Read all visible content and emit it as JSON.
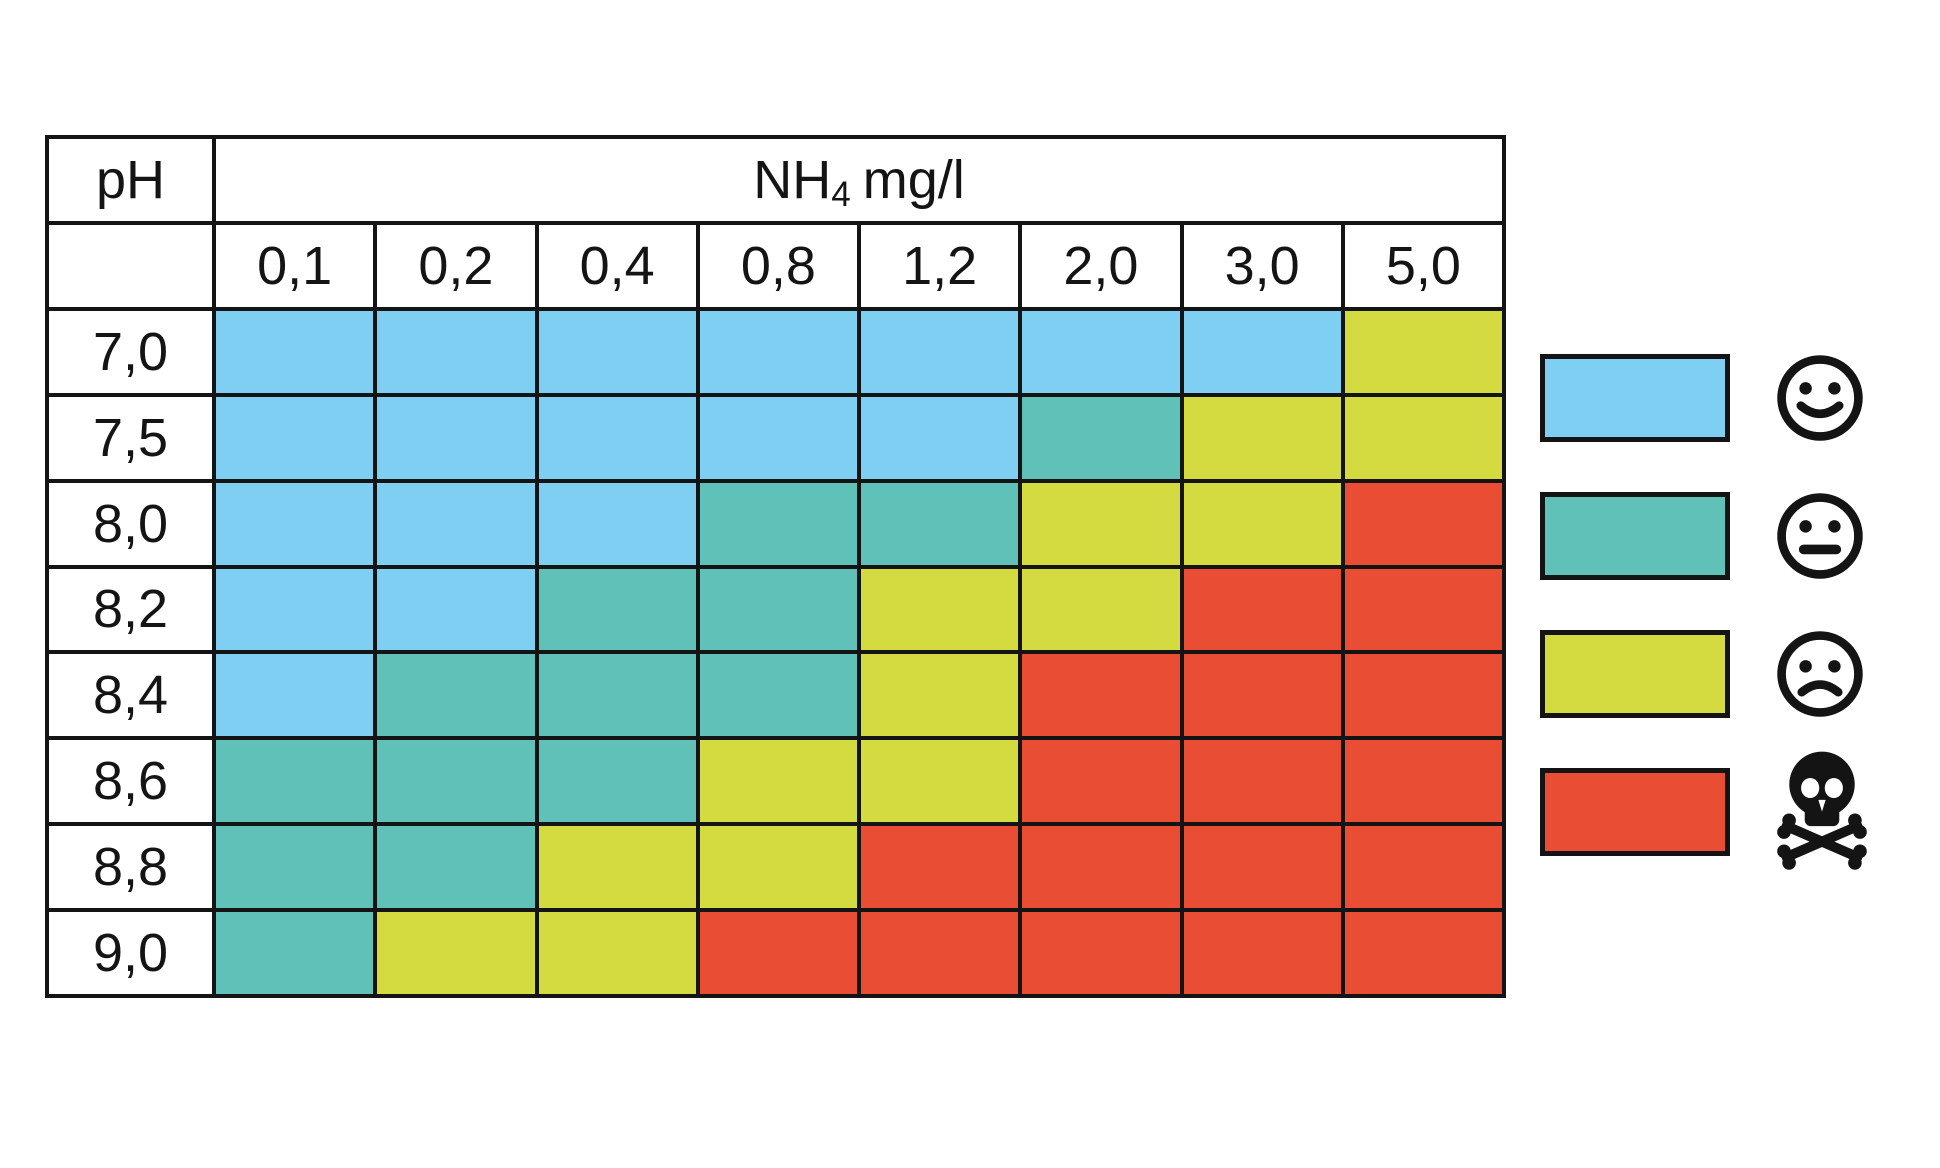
{
  "title_cell": "pH",
  "nh4_header": {
    "base": "NH",
    "sub": "4",
    "unit": "mg/l"
  },
  "colors": {
    "good": "#7FCFF2",
    "ok": "#5FC1B8",
    "bad": "#D4DB40",
    "deadly": "#E94D33",
    "grid_line": "#141414",
    "text": "#141414"
  },
  "legend": [
    {
      "level": "good",
      "icon": "happy-face-icon"
    },
    {
      "level": "ok",
      "icon": "neutral-face-icon"
    },
    {
      "level": "bad",
      "icon": "sad-face-icon"
    },
    {
      "level": "deadly",
      "icon": "skull-crossbones-icon"
    }
  ],
  "chart_data": {
    "type": "heatmap",
    "xlabel": "NH4 mg/l",
    "ylabel": "pH",
    "x_categories": [
      "0,1",
      "0,2",
      "0,4",
      "0,8",
      "1,2",
      "2,0",
      "3,0",
      "5,0"
    ],
    "y_categories": [
      "7,0",
      "7,5",
      "8,0",
      "8,2",
      "8,4",
      "8,6",
      "8,8",
      "9,0"
    ],
    "legend_levels": [
      "good",
      "ok",
      "bad",
      "deadly"
    ],
    "values": [
      [
        "good",
        "good",
        "good",
        "good",
        "good",
        "good",
        "good",
        "bad"
      ],
      [
        "good",
        "good",
        "good",
        "good",
        "good",
        "ok",
        "bad",
        "bad"
      ],
      [
        "good",
        "good",
        "good",
        "ok",
        "ok",
        "bad",
        "bad",
        "deadly"
      ],
      [
        "good",
        "good",
        "ok",
        "ok",
        "bad",
        "bad",
        "deadly",
        "deadly"
      ],
      [
        "good",
        "ok",
        "ok",
        "ok",
        "bad",
        "deadly",
        "deadly",
        "deadly"
      ],
      [
        "ok",
        "ok",
        "ok",
        "bad",
        "bad",
        "deadly",
        "deadly",
        "deadly"
      ],
      [
        "ok",
        "ok",
        "bad",
        "bad",
        "deadly",
        "deadly",
        "deadly",
        "deadly"
      ],
      [
        "ok",
        "bad",
        "bad",
        "deadly",
        "deadly",
        "deadly",
        "deadly",
        "deadly"
      ]
    ]
  }
}
